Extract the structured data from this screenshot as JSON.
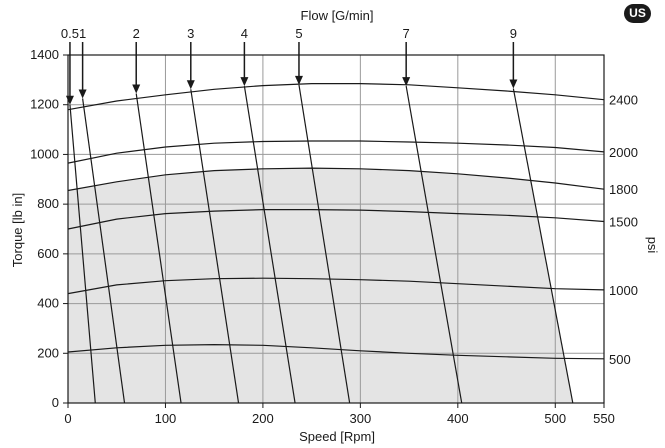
{
  "badge": "US",
  "chart_data": {
    "type": "line",
    "title": "Flow [G/min]",
    "xlabel": "Speed [Rpm]",
    "ylabel": "Torque [lb in]",
    "ylabel_right": "psi",
    "xlim": [
      0,
      550
    ],
    "ylim": [
      0,
      1400
    ],
    "xticks": [
      "0",
      "100",
      "200",
      "300",
      "400",
      "500",
      "550"
    ],
    "yticks": [
      "0",
      "200",
      "400",
      "600",
      "800",
      "1000",
      "1200",
      "1400"
    ],
    "grid": true,
    "pressure_curves": [
      {
        "label": "2400",
        "points": [
          [
            0,
            1180
          ],
          [
            50,
            1215
          ],
          [
            100,
            1240
          ],
          [
            150,
            1262
          ],
          [
            200,
            1277
          ],
          [
            250,
            1285
          ],
          [
            300,
            1285
          ],
          [
            350,
            1280
          ],
          [
            400,
            1268
          ],
          [
            450,
            1255
          ],
          [
            500,
            1240
          ],
          [
            550,
            1220
          ]
        ]
      },
      {
        "label": "2000",
        "points": [
          [
            0,
            965
          ],
          [
            50,
            1005
          ],
          [
            100,
            1030
          ],
          [
            150,
            1045
          ],
          [
            200,
            1052
          ],
          [
            250,
            1054
          ],
          [
            300,
            1054
          ],
          [
            350,
            1050
          ],
          [
            400,
            1045
          ],
          [
            450,
            1038
          ],
          [
            500,
            1028
          ],
          [
            550,
            1010
          ]
        ]
      },
      {
        "label": "1800",
        "points": [
          [
            0,
            855
          ],
          [
            50,
            890
          ],
          [
            100,
            918
          ],
          [
            150,
            935
          ],
          [
            200,
            942
          ],
          [
            250,
            945
          ],
          [
            300,
            942
          ],
          [
            350,
            935
          ],
          [
            400,
            922
          ],
          [
            450,
            905
          ],
          [
            500,
            885
          ],
          [
            550,
            860
          ]
        ]
      },
      {
        "label": "1500",
        "points": [
          [
            0,
            700
          ],
          [
            50,
            740
          ],
          [
            100,
            762
          ],
          [
            150,
            772
          ],
          [
            200,
            778
          ],
          [
            250,
            778
          ],
          [
            300,
            776
          ],
          [
            350,
            770
          ],
          [
            400,
            762
          ],
          [
            450,
            755
          ],
          [
            500,
            745
          ],
          [
            550,
            730
          ]
        ]
      },
      {
        "label": "1000",
        "points": [
          [
            0,
            440
          ],
          [
            50,
            475
          ],
          [
            100,
            492
          ],
          [
            150,
            500
          ],
          [
            200,
            502
          ],
          [
            250,
            500
          ],
          [
            300,
            496
          ],
          [
            350,
            490
          ],
          [
            400,
            480
          ],
          [
            450,
            470
          ],
          [
            500,
            460
          ],
          [
            550,
            455
          ]
        ]
      },
      {
        "label": "500",
        "points": [
          [
            0,
            205
          ],
          [
            50,
            222
          ],
          [
            100,
            232
          ],
          [
            150,
            235
          ],
          [
            200,
            232
          ],
          [
            250,
            222
          ],
          [
            300,
            210
          ],
          [
            350,
            200
          ],
          [
            400,
            192
          ],
          [
            450,
            186
          ],
          [
            500,
            180
          ],
          [
            550,
            178
          ]
        ]
      }
    ],
    "flow_lines": [
      {
        "label": "0.5",
        "top": [
          2,
          1200
        ],
        "bottom": [
          28,
          0
        ]
      },
      {
        "label": "1",
        "top": [
          15,
          1225
        ],
        "bottom": [
          58,
          0
        ]
      },
      {
        "label": "2",
        "top": [
          70,
          1245
        ],
        "bottom": [
          116,
          0
        ]
      },
      {
        "label": "3",
        "top": [
          126,
          1262
        ],
        "bottom": [
          175,
          0
        ]
      },
      {
        "label": "4",
        "top": [
          181,
          1275
        ],
        "bottom": [
          233,
          0
        ]
      },
      {
        "label": "5",
        "top": [
          237,
          1280
        ],
        "bottom": [
          289,
          0
        ]
      },
      {
        "label": "7",
        "top": [
          347,
          1275
        ],
        "bottom": [
          404,
          0
        ]
      },
      {
        "label": "9",
        "top": [
          457,
          1265
        ],
        "bottom": [
          518,
          0
        ]
      }
    ],
    "shaded_region": [
      [
        0,
        0
      ],
      [
        0,
        855
      ],
      [
        50,
        890
      ],
      [
        100,
        918
      ],
      [
        150,
        935
      ],
      [
        200,
        942
      ],
      [
        250,
        945
      ],
      [
        300,
        942
      ],
      [
        350,
        935
      ],
      [
        400,
        922
      ],
      [
        450,
        905
      ],
      [
        475,
        895
      ],
      [
        518,
        0
      ]
    ]
  }
}
